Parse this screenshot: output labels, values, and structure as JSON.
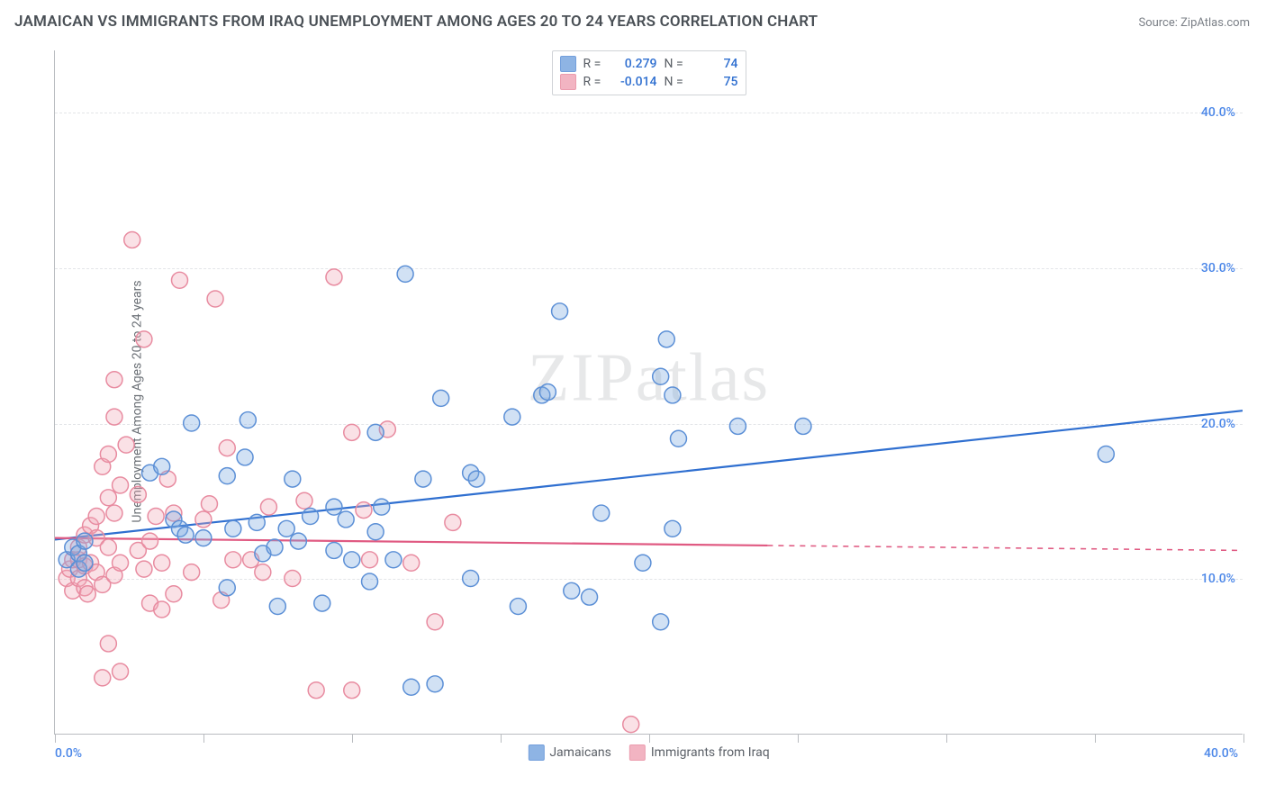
{
  "title": "JAMAICAN VS IMMIGRANTS FROM IRAQ UNEMPLOYMENT AMONG AGES 20 TO 24 YEARS CORRELATION CHART",
  "source_label": "Source: ZipAtlas.com",
  "y_axis_label": "Unemployment Among Ages 20 to 24 years",
  "watermark": "ZIPatlas",
  "chart": {
    "type": "scatter",
    "background_color": "#ffffff",
    "grid_color": "#e3e5e8",
    "axis_color": "#b9bcc0",
    "xlim": [
      0,
      40
    ],
    "ylim": [
      0,
      44
    ],
    "x_ticks": [
      0,
      40
    ],
    "x_tick_labels": [
      "0.0%",
      "40.0%"
    ],
    "x_minor_ticks": [
      5,
      10,
      15,
      20,
      25,
      30,
      35
    ],
    "y_ticks": [
      10,
      20,
      30,
      40
    ],
    "y_tick_labels": [
      "10.0%",
      "20.0%",
      "30.0%",
      "40.0%"
    ],
    "y_tick_color": "#4a86e8",
    "x_tick_color": "#4a86e8",
    "marker_radius": 9,
    "marker_stroke_width": 1.5,
    "marker_fill_opacity": 0.35,
    "line_width": 2.2,
    "title_fontsize": 17,
    "label_fontsize": 14
  },
  "series": [
    {
      "name": "Jamaicans",
      "color": "#7ba8e0",
      "stroke": "#5b8fd6",
      "line_color": "#2f6fd0",
      "r": "0.279",
      "n": "74",
      "regression": {
        "x1": 0,
        "y1": 12.5,
        "x2": 40,
        "y2": 20.8,
        "solid_to_x": 40
      },
      "points": [
        [
          0.4,
          11.2
        ],
        [
          0.6,
          12.0
        ],
        [
          0.8,
          10.6
        ],
        [
          0.8,
          11.6
        ],
        [
          1.0,
          11.0
        ],
        [
          1.0,
          12.4
        ],
        [
          3.2,
          16.8
        ],
        [
          3.6,
          17.2
        ],
        [
          4.0,
          13.8
        ],
        [
          4.2,
          13.2
        ],
        [
          4.4,
          12.8
        ],
        [
          4.6,
          20.0
        ],
        [
          5.0,
          12.6
        ],
        [
          5.8,
          16.6
        ],
        [
          5.8,
          9.4
        ],
        [
          6.0,
          13.2
        ],
        [
          6.4,
          17.8
        ],
        [
          6.5,
          20.2
        ],
        [
          6.8,
          13.6
        ],
        [
          7.0,
          11.6
        ],
        [
          7.4,
          12.0
        ],
        [
          7.5,
          8.2
        ],
        [
          7.8,
          13.2
        ],
        [
          8.0,
          16.4
        ],
        [
          8.2,
          12.4
        ],
        [
          8.6,
          14.0
        ],
        [
          9.0,
          8.4
        ],
        [
          9.4,
          14.6
        ],
        [
          9.4,
          11.8
        ],
        [
          9.8,
          13.8
        ],
        [
          10.0,
          11.2
        ],
        [
          10.6,
          9.8
        ],
        [
          10.8,
          13.0
        ],
        [
          10.8,
          19.4
        ],
        [
          11.0,
          14.6
        ],
        [
          11.4,
          11.2
        ],
        [
          11.8,
          29.6
        ],
        [
          12.0,
          3.0
        ],
        [
          12.4,
          16.4
        ],
        [
          12.8,
          3.2
        ],
        [
          13.0,
          21.6
        ],
        [
          14.0,
          16.8
        ],
        [
          14.0,
          10.0
        ],
        [
          14.2,
          16.4
        ],
        [
          15.4,
          20.4
        ],
        [
          15.6,
          8.2
        ],
        [
          16.4,
          21.8
        ],
        [
          16.6,
          22.0
        ],
        [
          17.0,
          27.2
        ],
        [
          17.4,
          9.2
        ],
        [
          18.0,
          8.8
        ],
        [
          18.4,
          14.2
        ],
        [
          19.8,
          11.0
        ],
        [
          20.4,
          23.0
        ],
        [
          20.4,
          7.2
        ],
        [
          20.6,
          25.4
        ],
        [
          20.8,
          13.2
        ],
        [
          20.8,
          21.8
        ],
        [
          21.0,
          19.0
        ],
        [
          23.0,
          19.8
        ],
        [
          25.2,
          19.8
        ],
        [
          35.4,
          18.0
        ]
      ]
    },
    {
      "name": "Immigrants from Iraq",
      "color": "#f0a8b8",
      "stroke": "#e88ba0",
      "line_color": "#e05a82",
      "r": "-0.014",
      "n": "75",
      "regression": {
        "x1": 0,
        "y1": 12.6,
        "x2": 40,
        "y2": 11.8,
        "solid_to_x": 24
      },
      "points": [
        [
          0.4,
          10.0
        ],
        [
          0.5,
          10.6
        ],
        [
          0.6,
          11.2
        ],
        [
          0.6,
          9.2
        ],
        [
          0.8,
          10.0
        ],
        [
          0.8,
          11.2
        ],
        [
          0.8,
          12.0
        ],
        [
          1.0,
          9.4
        ],
        [
          1.0,
          10.8
        ],
        [
          1.0,
          12.8
        ],
        [
          1.1,
          9.0
        ],
        [
          1.2,
          11.0
        ],
        [
          1.2,
          13.4
        ],
        [
          1.4,
          10.4
        ],
        [
          1.4,
          12.6
        ],
        [
          1.4,
          14.0
        ],
        [
          1.6,
          17.2
        ],
        [
          1.6,
          9.6
        ],
        [
          1.6,
          3.6
        ],
        [
          1.8,
          5.8
        ],
        [
          1.8,
          12.0
        ],
        [
          1.8,
          15.2
        ],
        [
          1.8,
          18.0
        ],
        [
          2.0,
          10.2
        ],
        [
          2.0,
          14.2
        ],
        [
          2.0,
          20.4
        ],
        [
          2.0,
          22.8
        ],
        [
          2.2,
          11.0
        ],
        [
          2.2,
          16.0
        ],
        [
          2.2,
          4.0
        ],
        [
          2.4,
          18.6
        ],
        [
          2.6,
          31.8
        ],
        [
          2.8,
          11.8
        ],
        [
          2.8,
          15.4
        ],
        [
          3.0,
          10.6
        ],
        [
          3.0,
          25.4
        ],
        [
          3.2,
          8.4
        ],
        [
          3.2,
          12.4
        ],
        [
          3.4,
          14.0
        ],
        [
          3.6,
          11.0
        ],
        [
          3.6,
          8.0
        ],
        [
          3.8,
          16.4
        ],
        [
          4.0,
          9.0
        ],
        [
          4.0,
          14.2
        ],
        [
          4.2,
          29.2
        ],
        [
          4.6,
          10.4
        ],
        [
          5.0,
          13.8
        ],
        [
          5.2,
          14.8
        ],
        [
          5.4,
          28.0
        ],
        [
          5.6,
          8.6
        ],
        [
          5.8,
          18.4
        ],
        [
          6.0,
          11.2
        ],
        [
          6.6,
          11.2
        ],
        [
          7.0,
          10.4
        ],
        [
          7.2,
          14.6
        ],
        [
          8.0,
          10.0
        ],
        [
          8.4,
          15.0
        ],
        [
          8.8,
          2.8
        ],
        [
          9.4,
          29.4
        ],
        [
          10.0,
          19.4
        ],
        [
          10.0,
          2.8
        ],
        [
          10.4,
          14.4
        ],
        [
          10.6,
          11.2
        ],
        [
          11.2,
          19.6
        ],
        [
          12.0,
          11.0
        ],
        [
          12.8,
          7.2
        ],
        [
          13.4,
          13.6
        ],
        [
          19.4,
          0.6
        ]
      ]
    }
  ],
  "legend_top": {
    "labels": {
      "r": "R =",
      "n": "N ="
    },
    "value_color": "#2f6fd0"
  },
  "legend_bottom": {
    "items": [
      "Jamaicans",
      "Immigrants from Iraq"
    ]
  }
}
